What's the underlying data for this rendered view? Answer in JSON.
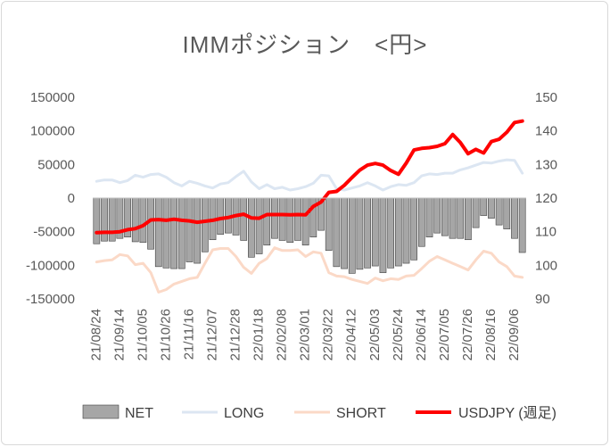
{
  "chart_data": {
    "type": "bar+line",
    "title": "IMMポジション　<円>",
    "categories": [
      "21/08/24",
      "21/08/31",
      "21/09/07",
      "21/09/14",
      "21/09/21",
      "21/09/28",
      "21/10/05",
      "21/10/12",
      "21/10/19",
      "21/10/26",
      "21/11/02",
      "21/11/09",
      "21/11/16",
      "21/11/23",
      "21/11/30",
      "21/12/07",
      "21/12/14",
      "21/12/21",
      "21/12/28",
      "22/01/04",
      "22/01/11",
      "22/01/18",
      "22/01/25",
      "22/02/01",
      "22/02/08",
      "22/02/15",
      "22/02/22",
      "22/03/01",
      "22/03/08",
      "22/03/15",
      "22/03/22",
      "22/03/29",
      "22/04/05",
      "22/04/12",
      "22/04/19",
      "22/04/26",
      "22/05/03",
      "22/05/10",
      "22/05/17",
      "22/05/24",
      "22/05/31",
      "22/06/07",
      "22/06/14",
      "22/06/21",
      "22/06/28",
      "22/07/05",
      "22/07/12",
      "22/07/19",
      "22/07/26",
      "22/08/02",
      "22/08/09",
      "22/08/16",
      "22/08/23",
      "22/08/30",
      "22/09/06",
      "22/09/13"
    ],
    "x_tick_labels": [
      "21/08/24",
      "21/09/14",
      "21/10/05",
      "21/10/26",
      "21/11/16",
      "21/12/07",
      "21/12/28",
      "22/01/18",
      "22/02/08",
      "22/03/01",
      "22/03/22",
      "22/04/12",
      "22/05/03",
      "22/05/24",
      "22/06/14",
      "22/07/05",
      "22/07/26",
      "22/08/16",
      "22/09/06"
    ],
    "y_left": {
      "ticks": [
        "150000",
        "100000",
        "50000",
        "0",
        "-50000",
        "-100000",
        "-150000"
      ],
      "range": [
        -150000,
        150000
      ]
    },
    "y_right": {
      "ticks": [
        "150",
        "140",
        "130",
        "120",
        "110",
        "100",
        "90"
      ],
      "range": [
        90,
        150
      ]
    },
    "series": [
      {
        "name": "NET",
        "type": "bar",
        "axis": "left",
        "color": "#a6a6a6",
        "values": [
          -68000,
          -64000,
          -64000,
          -60000,
          -58000,
          -65000,
          -66000,
          -76000,
          -102000,
          -104000,
          -105000,
          -105000,
          -95000,
          -97000,
          -80000,
          -62000,
          -54000,
          -52000,
          -55000,
          -63000,
          -88000,
          -83000,
          -70000,
          -60000,
          -63000,
          -66000,
          -63000,
          -70000,
          -58000,
          -48000,
          -78000,
          -102000,
          -105000,
          -112000,
          -106000,
          -104000,
          -101000,
          -111000,
          -104000,
          -101000,
          -97000,
          -92000,
          -72000,
          -58000,
          -52000,
          -56000,
          -60000,
          -60000,
          -62000,
          -44000,
          -26000,
          -30000,
          -40000,
          -46000,
          -60000,
          -81000
        ]
      },
      {
        "name": "LONG",
        "type": "line",
        "axis": "left",
        "color": "#dce6f2",
        "values": [
          25000,
          27000,
          27000,
          23000,
          26000,
          34000,
          31000,
          35000,
          36000,
          31000,
          23000,
          18000,
          25000,
          22000,
          18000,
          15000,
          21000,
          23000,
          32000,
          40000,
          24000,
          14000,
          20000,
          14000,
          16000,
          12000,
          14000,
          17000,
          22000,
          34000,
          33000,
          14000,
          12000,
          15000,
          18000,
          23000,
          18000,
          12000,
          17000,
          20000,
          19000,
          23000,
          33000,
          36000,
          35000,
          37000,
          37000,
          42000,
          45000,
          49000,
          53000,
          52000,
          55000,
          57000,
          56000,
          37000
        ]
      },
      {
        "name": "SHORT",
        "type": "line",
        "axis": "left",
        "color": "#fbd9c7",
        "values": [
          -95000,
          -93000,
          -92000,
          -84000,
          -86000,
          -99000,
          -97000,
          -111000,
          -140000,
          -136000,
          -128000,
          -124000,
          -120000,
          -118000,
          -97000,
          -77000,
          -75000,
          -75000,
          -87000,
          -103000,
          -112000,
          -97000,
          -90000,
          -74000,
          -78000,
          -78000,
          -77000,
          -87000,
          -80000,
          -82000,
          -111000,
          -116000,
          -117000,
          -121000,
          -124000,
          -127000,
          -119000,
          -123000,
          -120000,
          -121000,
          -116000,
          -115000,
          -105000,
          -94000,
          -87000,
          -92000,
          -97000,
          -102000,
          -107000,
          -92000,
          -79000,
          -82000,
          -95000,
          -102000,
          -116000,
          -118000
        ]
      },
      {
        "name": "USDJPY (週足)",
        "type": "line",
        "axis": "right",
        "color": "#ff0000",
        "values": [
          109.7,
          109.8,
          109.8,
          110.0,
          110.6,
          110.9,
          111.8,
          113.5,
          113.6,
          113.4,
          113.7,
          113.4,
          113.2,
          112.8,
          113.1,
          113.4,
          113.9,
          114.2,
          114.8,
          115.2,
          114.1,
          114.0,
          115.1,
          115.1,
          115.1,
          115.0,
          115.1,
          115.0,
          117.5,
          118.8,
          121.7,
          122.0,
          123.8,
          126.1,
          128.3,
          129.8,
          130.3,
          129.8,
          128.2,
          127.1,
          130.4,
          134.3,
          134.8,
          135.0,
          135.4,
          136.2,
          138.9,
          136.5,
          133.2,
          134.5,
          133.4,
          136.8,
          137.5,
          139.6,
          142.5,
          142.9
        ]
      }
    ],
    "legend": {
      "placement": "bottom",
      "labels": [
        "NET",
        "LONG",
        "SHORT",
        "USDJPY (週足)"
      ]
    }
  }
}
